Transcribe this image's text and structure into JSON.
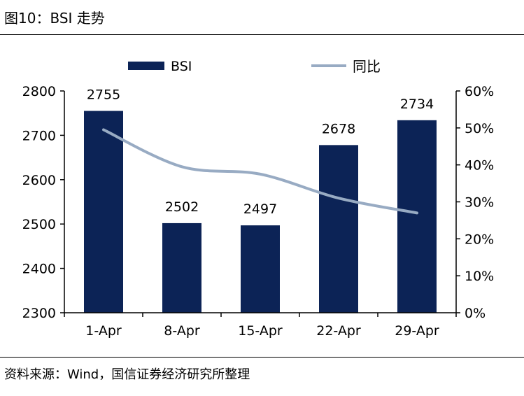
{
  "figure": {
    "title": "图10：BSI 走势",
    "source": "资料来源：Wind，国信证券经济研究所整理"
  },
  "colors": {
    "bar": "#0c2356",
    "line": "#98abc3",
    "axis": "#000000"
  },
  "chart_data": {
    "type": "bar",
    "categories": [
      "1-Apr",
      "8-Apr",
      "15-Apr",
      "22-Apr",
      "29-Apr"
    ],
    "series": [
      {
        "name": "BSI",
        "type": "bar",
        "axis": "left",
        "values": [
          2755,
          2502,
          2497,
          2678,
          2734
        ],
        "labels": [
          "2755",
          "2502",
          "2497",
          "2678",
          "2734"
        ]
      },
      {
        "name": "同比",
        "type": "line",
        "axis": "right",
        "values": [
          0.495,
          0.395,
          0.375,
          0.31,
          0.27
        ]
      }
    ],
    "y_left": {
      "min": 2300,
      "max": 2800,
      "ticks": [
        "2300",
        "2400",
        "2500",
        "2600",
        "2700",
        "2800"
      ]
    },
    "y_right": {
      "min": 0,
      "max": 0.6,
      "ticks": [
        "0%",
        "10%",
        "20%",
        "30%",
        "40%",
        "50%",
        "60%"
      ]
    },
    "legend": {
      "placement": "top",
      "labels": [
        "BSI",
        "同比"
      ]
    },
    "grid": false
  }
}
